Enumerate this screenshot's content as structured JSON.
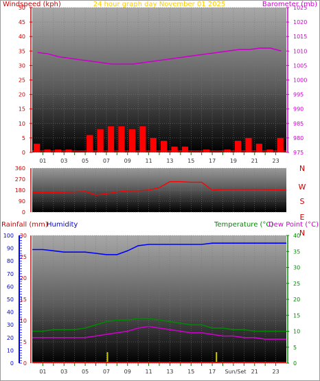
{
  "header": {
    "left_label": "Windspeed (kph)",
    "center_label": "24 hour graph day   November 01 2025",
    "right_label": "Barometer (mb)"
  },
  "bottom_header": {
    "rainfall_label": "Rainfall (mm)",
    "humidity_label": "Humidity",
    "temperature_label": "Temperature (°C)",
    "dewpoint_label": "Dew Point (°C)"
  },
  "colors": {
    "wind": "#ff0000",
    "gust": "#0000ff",
    "wind_low": "#00aa00",
    "barometer": "#cc00cc",
    "direction": "#ff0000",
    "humidity": "#0000ff",
    "temperature": "#008800",
    "dewpoint": "#cc00cc",
    "rainfall": "#ff0000",
    "sun_marker": "#cccc00",
    "header_left": "#cc0000",
    "header_center": "#ffcc00",
    "header_right": "#cc00cc",
    "humidity_axis": "#0000cc",
    "temp_axis": "#008800"
  },
  "x_axis": {
    "top_ticks": [
      "01",
      "03",
      "05",
      "07",
      "09",
      "11",
      "13",
      "15",
      "17",
      "19",
      "21",
      "23"
    ],
    "bottom_ticks": [
      "01",
      "03",
      "05",
      "07",
      "09",
      "11",
      "13",
      "15",
      "17",
      "Sun/Set",
      "21",
      "23"
    ]
  },
  "chart_data": [
    {
      "type": "line",
      "name": "wind_and_pressure",
      "x": [
        0,
        1,
        2,
        3,
        4,
        5,
        6,
        7,
        8,
        9,
        10,
        11,
        12,
        13,
        14,
        15,
        16,
        17,
        18,
        19,
        20,
        21,
        22,
        23
      ],
      "series": [
        {
          "name": "Windspeed (kph)",
          "axis": "left",
          "values": [
            3,
            1,
            1,
            1,
            0,
            6,
            8,
            9,
            9,
            8,
            9,
            5,
            4,
            2,
            2,
            0,
            1,
            0,
            1,
            4,
            5,
            3,
            1,
            5
          ]
        },
        {
          "name": "Barometer (mb)",
          "axis": "right",
          "values": [
            1009.5,
            1009,
            1008,
            1007.5,
            1007,
            1006.5,
            1006,
            1005.5,
            1005.5,
            1005.5,
            1006,
            1006.5,
            1007,
            1007.5,
            1008,
            1008.5,
            1009,
            1009.5,
            1010,
            1010.5,
            1010.5,
            1011,
            1011,
            1010
          ]
        }
      ],
      "ylim_left": [
        0,
        50
      ],
      "yticks_left": [
        "0",
        "5",
        "10",
        "15",
        "20",
        "25",
        "30",
        "35",
        "40",
        "45",
        "50"
      ],
      "ylim_right": [
        975,
        1025
      ],
      "yticks_right": [
        "975",
        "980",
        "985",
        "990",
        "995",
        "1000",
        "1005",
        "1010",
        "1015",
        "1020",
        "1025"
      ]
    },
    {
      "type": "line",
      "name": "wind_direction",
      "x": [
        0,
        2,
        4,
        5,
        6,
        7,
        8,
        9,
        10,
        11,
        12,
        13,
        14,
        15,
        16,
        17,
        18,
        20,
        22,
        24
      ],
      "series": [
        {
          "name": "Wind Direction",
          "values": [
            160,
            160,
            165,
            170,
            140,
            150,
            165,
            175,
            175,
            180,
            200,
            250,
            250,
            245,
            245,
            180,
            185,
            185,
            185,
            180
          ]
        }
      ],
      "ylim": [
        0,
        360
      ],
      "yticks": [
        "0",
        "90",
        "180",
        "270",
        "360"
      ],
      "compass_labels": [
        "N",
        "W",
        "S",
        "E",
        "N"
      ]
    },
    {
      "type": "line",
      "name": "temp_humidity_rain",
      "x": [
        0,
        1,
        2,
        3,
        4,
        5,
        6,
        7,
        8,
        9,
        10,
        11,
        12,
        13,
        14,
        15,
        16,
        17,
        18,
        19,
        20,
        21,
        22,
        23,
        24
      ],
      "series": [
        {
          "name": "Humidity",
          "axis": "humidity",
          "values": [
            89,
            89,
            88,
            87,
            87,
            87,
            86,
            85,
            85,
            88,
            92,
            93,
            93,
            93,
            93,
            93,
            93,
            94,
            94,
            94,
            94,
            94,
            94,
            94,
            94
          ]
        },
        {
          "name": "Temperature (°C)",
          "axis": "temp",
          "values": [
            10,
            10,
            10.5,
            10.5,
            10.5,
            11,
            12,
            13,
            13.5,
            13.5,
            14,
            14,
            13.5,
            13,
            12.5,
            12,
            12,
            11,
            11,
            10.5,
            10.5,
            10,
            10,
            10,
            10
          ]
        },
        {
          "name": "Dew Point (°C)",
          "axis": "temp",
          "values": [
            8,
            8,
            8,
            8,
            8,
            8,
            8.5,
            9,
            9.5,
            10,
            11,
            11.5,
            11,
            10.5,
            10,
            9.5,
            9.5,
            9,
            8.5,
            8.5,
            8,
            8,
            7.5,
            7.5,
            7.5
          ]
        },
        {
          "name": "Rainfall (mm)",
          "axis": "rain",
          "values": [
            0,
            0,
            0,
            0,
            0,
            0,
            0,
            0,
            0,
            0,
            0,
            0,
            0,
            0,
            0,
            0,
            0,
            0,
            0,
            0,
            0,
            0,
            0,
            0,
            0
          ]
        }
      ],
      "ylim_rain": [
        0,
        30
      ],
      "yticks_rain": [
        "0",
        "5",
        "10",
        "15",
        "20",
        "25",
        "30"
      ],
      "ylim_humidity": [
        0,
        100
      ],
      "yticks_humidity": [
        "0",
        "10",
        "20",
        "30",
        "40",
        "50",
        "60",
        "70",
        "80",
        "90",
        "100"
      ],
      "ylim_temp": [
        0,
        40
      ],
      "yticks_temp": [
        "0",
        "5",
        "10",
        "15",
        "20",
        "25",
        "30",
        "35",
        "40"
      ],
      "sun_events": [
        7.1,
        17.4
      ]
    }
  ]
}
